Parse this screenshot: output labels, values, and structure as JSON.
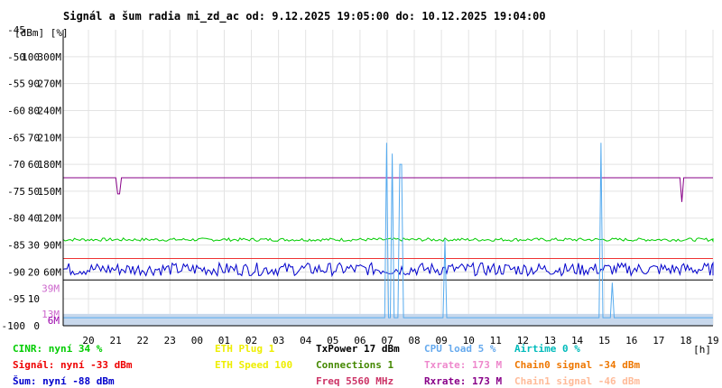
{
  "title": "Signál a šum radia mi_zd_ac od: 9.12.2025 19:05:00 do: 10.12.2025 19:04:00",
  "colors": {
    "plot_bg": "#ffffff",
    "grid": "#e3e3e3",
    "bottom_band": "#c8d8ec",
    "axis": "#000000"
  },
  "chart_data": {
    "type": "line",
    "x_label_unit": "[h]",
    "x_ticks": [
      "20",
      "21",
      "22",
      "23",
      "00",
      "01",
      "02",
      "03",
      "04",
      "05",
      "06",
      "07",
      "08",
      "09",
      "10",
      "11",
      "12",
      "13",
      "14",
      "15",
      "16",
      "17",
      "18",
      "19"
    ],
    "y_units_header": "[dBm]  [%]",
    "y_ticks": [
      {
        "dbm": "-45",
        "pct": "",
        "rate": ""
      },
      {
        "dbm": "-50",
        "pct": "100",
        "rate": "300M"
      },
      {
        "dbm": "-55",
        "pct": "90",
        "rate": "270M"
      },
      {
        "dbm": "-60",
        "pct": "80",
        "rate": "240M"
      },
      {
        "dbm": "-65",
        "pct": "70",
        "rate": "210M"
      },
      {
        "dbm": "-70",
        "pct": "60",
        "rate": "180M"
      },
      {
        "dbm": "-75",
        "pct": "50",
        "rate": "150M"
      },
      {
        "dbm": "-80",
        "pct": "40",
        "rate": "120M"
      },
      {
        "dbm": "-85",
        "pct": "30",
        "rate": "90M"
      },
      {
        "dbm": "-90",
        "pct": "20",
        "rate": "60M"
      },
      {
        "dbm": "-95",
        "pct": "10",
        "rate": ""
      },
      {
        "dbm": "-100",
        "pct": "0",
        "rate": ""
      }
    ],
    "y_side_labels": [
      {
        "text": "39M",
        "value_dbm": -93,
        "color": "#cc66cc"
      },
      {
        "text": "13M",
        "value_dbm": -97.8,
        "color": "#cc66cc"
      },
      {
        "text": "6M",
        "value_dbm": -99,
        "color": "#9900aa"
      }
    ],
    "ylim_dbm": [
      -100,
      -45
    ],
    "series": [
      {
        "name": "Signál",
        "color": "#880088",
        "level": -72.5,
        "dips": [
          {
            "hour": 1.1,
            "to": -75.5
          },
          {
            "hour": 21.85,
            "to": -77
          }
        ]
      },
      {
        "name": "CINR",
        "color": "#00cc00",
        "level": -84,
        "noise": 0.3
      },
      {
        "name": "Šum",
        "color": "#0000cc",
        "level": -89.5,
        "noise": 1.2
      },
      {
        "name": "TxPower",
        "color": "#000000",
        "level": -91.5
      },
      {
        "name": "Chain1 signal",
        "color": "#ee3333",
        "level": -87.5
      },
      {
        "name": "Txrate / Rxrate",
        "color": "#55aaee",
        "level": -98.5,
        "bursts": [
          {
            "hour": 11.0,
            "to": -66
          },
          {
            "hour": 11.2,
            "to": -68
          },
          {
            "hour": 11.5,
            "to": -70
          },
          {
            "hour": 13.1,
            "to": -84
          },
          {
            "hour": 18.9,
            "to": -66
          },
          {
            "hour": 19.3,
            "to": -92
          }
        ]
      }
    ]
  },
  "legend": {
    "col1": [
      {
        "text": "CINR: nyní 34 %",
        "color": "#00cc00"
      },
      {
        "text": "Signál: nyní -33 dBm",
        "color": "#ee0000"
      },
      {
        "text": "Šum: nyní -88 dBm",
        "color": "#0000cc"
      }
    ],
    "col2": [
      {
        "text": "ETH Plug 1",
        "color": "#eeee00"
      },
      {
        "text": "ETH Speed 100",
        "color": "#eeee00"
      }
    ],
    "col3": [
      {
        "text": "TxPower 17 dBm",
        "color": "#000000"
      },
      {
        "text": "Connections 1",
        "color": "#448800"
      },
      {
        "text": "Freq 5560 MHz",
        "color": "#cc3366"
      }
    ],
    "col4": [
      {
        "text": "CPU load 5 %",
        "color": "#66aaee"
      },
      {
        "text": "Txrate: 173 M",
        "color": "#ee88cc"
      },
      {
        "text": "Rxrate: 173 M",
        "color": "#880088"
      }
    ],
    "col5": [
      {
        "text": "Airtime 0 %",
        "color": "#00bbbb"
      },
      {
        "text": "Chain0 signal -34 dBm",
        "color": "#ee7700"
      },
      {
        "text": "Chain1 signal -46 dBm",
        "color": "#ffbb99"
      }
    ]
  }
}
